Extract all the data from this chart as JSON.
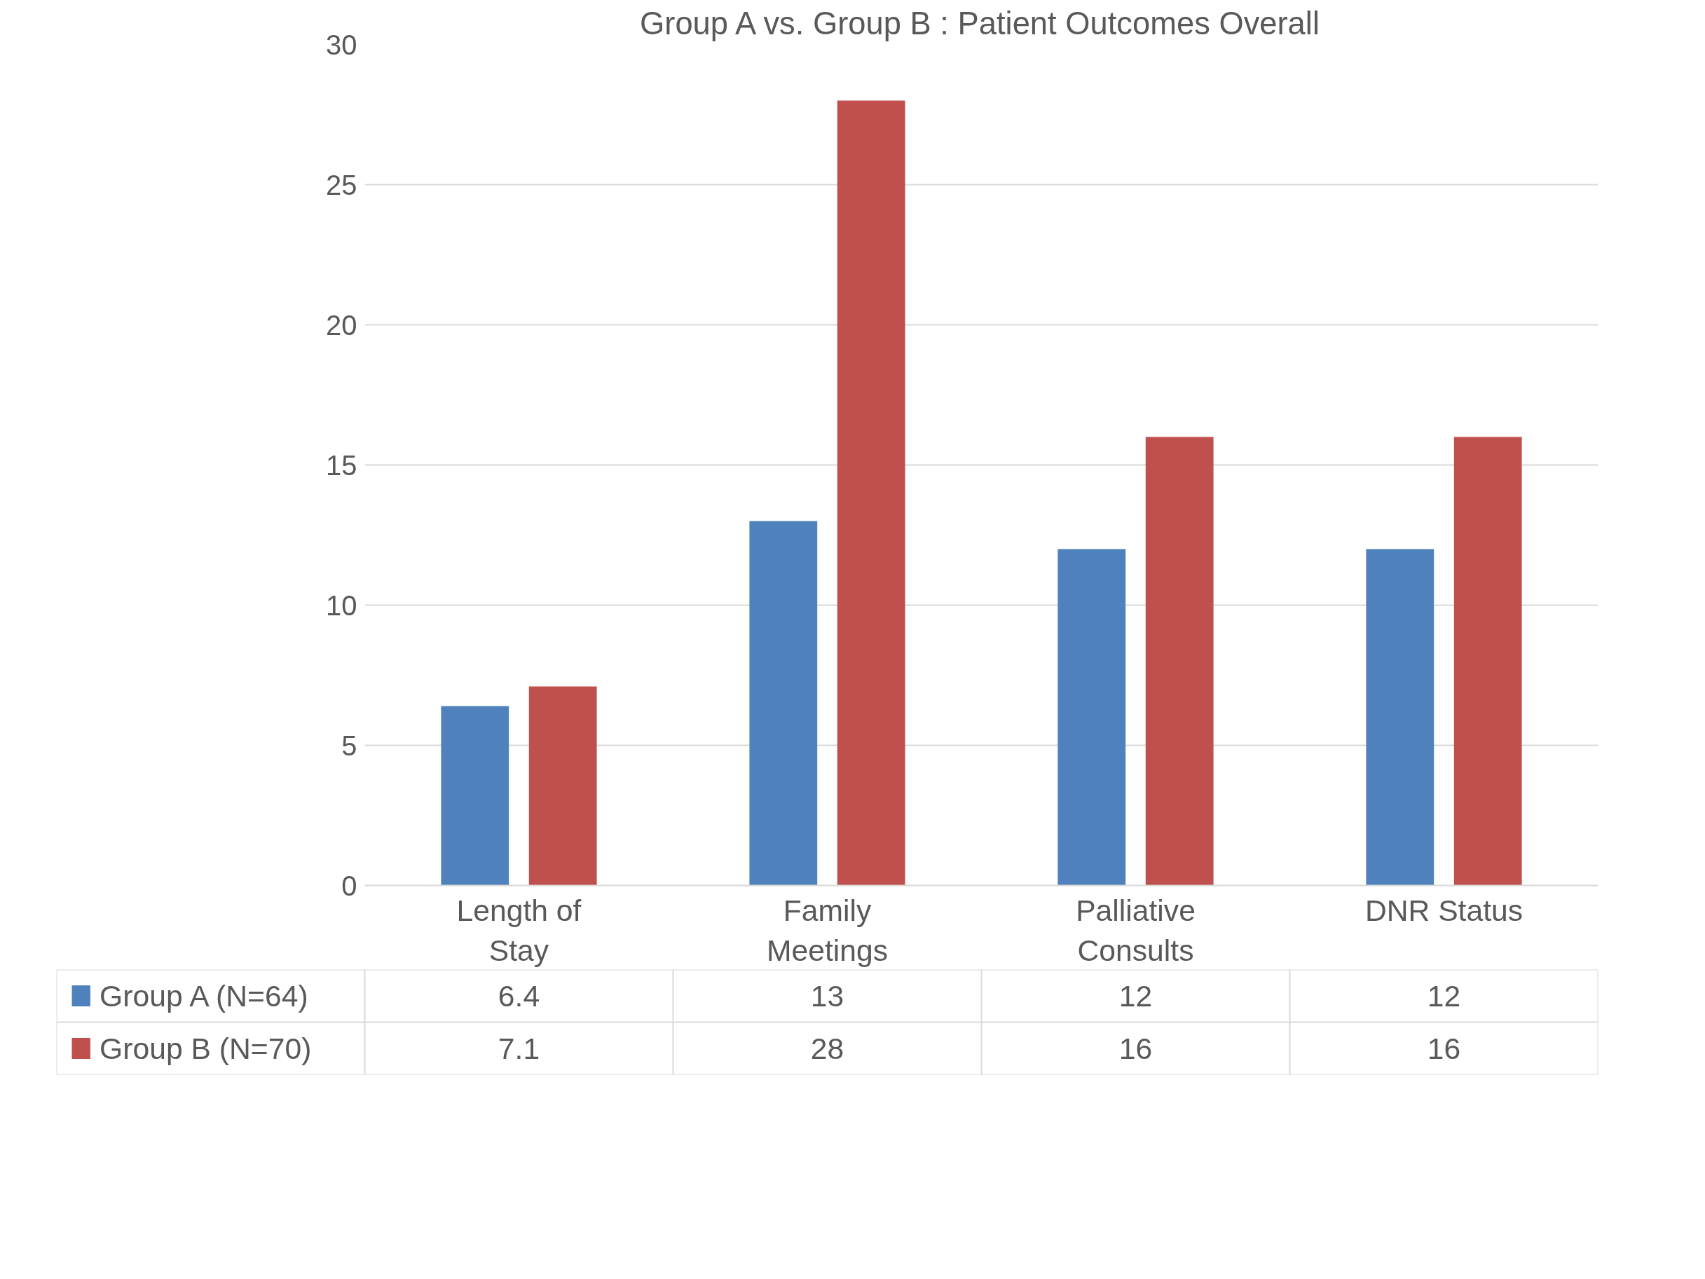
{
  "chart_data": {
    "type": "bar",
    "title": "Group A vs. Group B : Patient Outcomes Overall",
    "categories": [
      "Length of Stay",
      "Family Meetings",
      "Palliative Consults",
      "DNR Status"
    ],
    "series": [
      {
        "name": "Group A (N=64)",
        "color": "#4f81bd",
        "values": [
          6.4,
          13,
          12,
          12
        ]
      },
      {
        "name": "Group B (N=70)",
        "color": "#c0504d",
        "values": [
          7.1,
          28,
          16,
          16
        ]
      }
    ],
    "ylim": [
      0,
      30
    ],
    "yticks": [
      0,
      5,
      10,
      15,
      20,
      25,
      30
    ],
    "grid": "y",
    "legend": "bottom left",
    "data_labels": true
  }
}
